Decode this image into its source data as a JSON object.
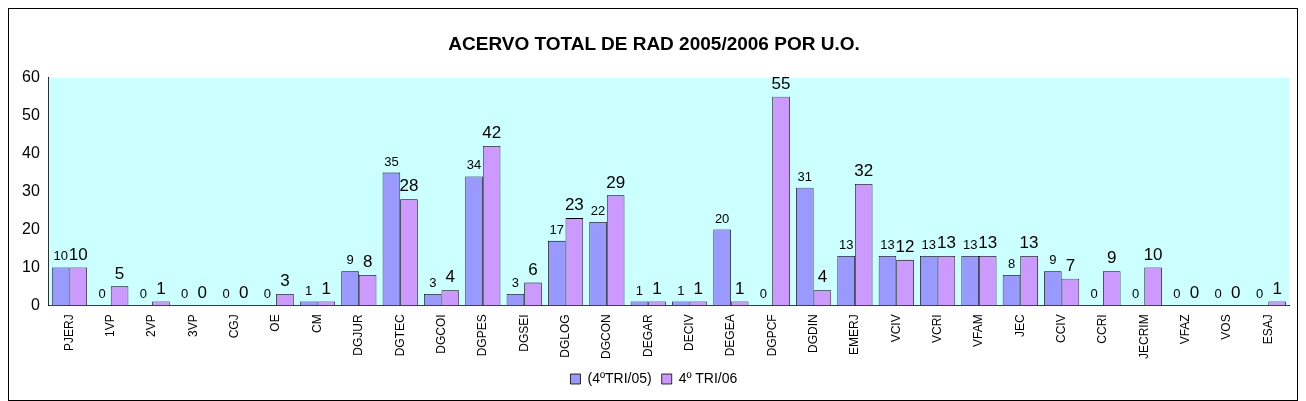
{
  "chart_data": {
    "type": "bar",
    "title": "ACERVO TOTAL DE RAD 2005/2006 POR U.O.",
    "categories": [
      "PJERJ",
      "1VP",
      "2VP",
      "3VP",
      "CGJ",
      "OE",
      "CM",
      "DGJUR",
      "DGTEC",
      "DGCOI",
      "DGPES",
      "DGSEI",
      "DGLOG",
      "DGCON",
      "DEGAR",
      "DECIV",
      "DEGEA",
      "DGPCF",
      "DGDIN",
      "EMERJ",
      "VCIV",
      "VCRI",
      "VFAM",
      "JEC",
      "CCIV",
      "CCRI",
      "JECRIM",
      "VFAZ",
      "VOS",
      "ESAJ"
    ],
    "series": [
      {
        "name": "(4ºTRI/05)",
        "color": "#9999ff",
        "values": [
          10,
          0,
          0,
          0,
          0,
          0,
          1,
          9,
          35,
          3,
          34,
          3,
          17,
          22,
          1,
          1,
          20,
          0,
          31,
          13,
          13,
          13,
          13,
          8,
          9,
          0,
          0,
          0,
          0,
          0
        ]
      },
      {
        "name": "4º TRI/06",
        "color": "#cc99ff",
        "values": [
          10,
          5,
          1,
          0,
          0,
          3,
          1,
          8,
          28,
          4,
          42,
          6,
          23,
          29,
          1,
          1,
          1,
          55,
          4,
          32,
          12,
          13,
          13,
          13,
          7,
          9,
          10,
          0,
          0,
          1
        ]
      }
    ],
    "ylim": [
      0,
      60
    ],
    "yticks": [
      0,
      10,
      20,
      30,
      40,
      50,
      60
    ],
    "grid": false,
    "legend": "bottom",
    "data_labels": true
  }
}
